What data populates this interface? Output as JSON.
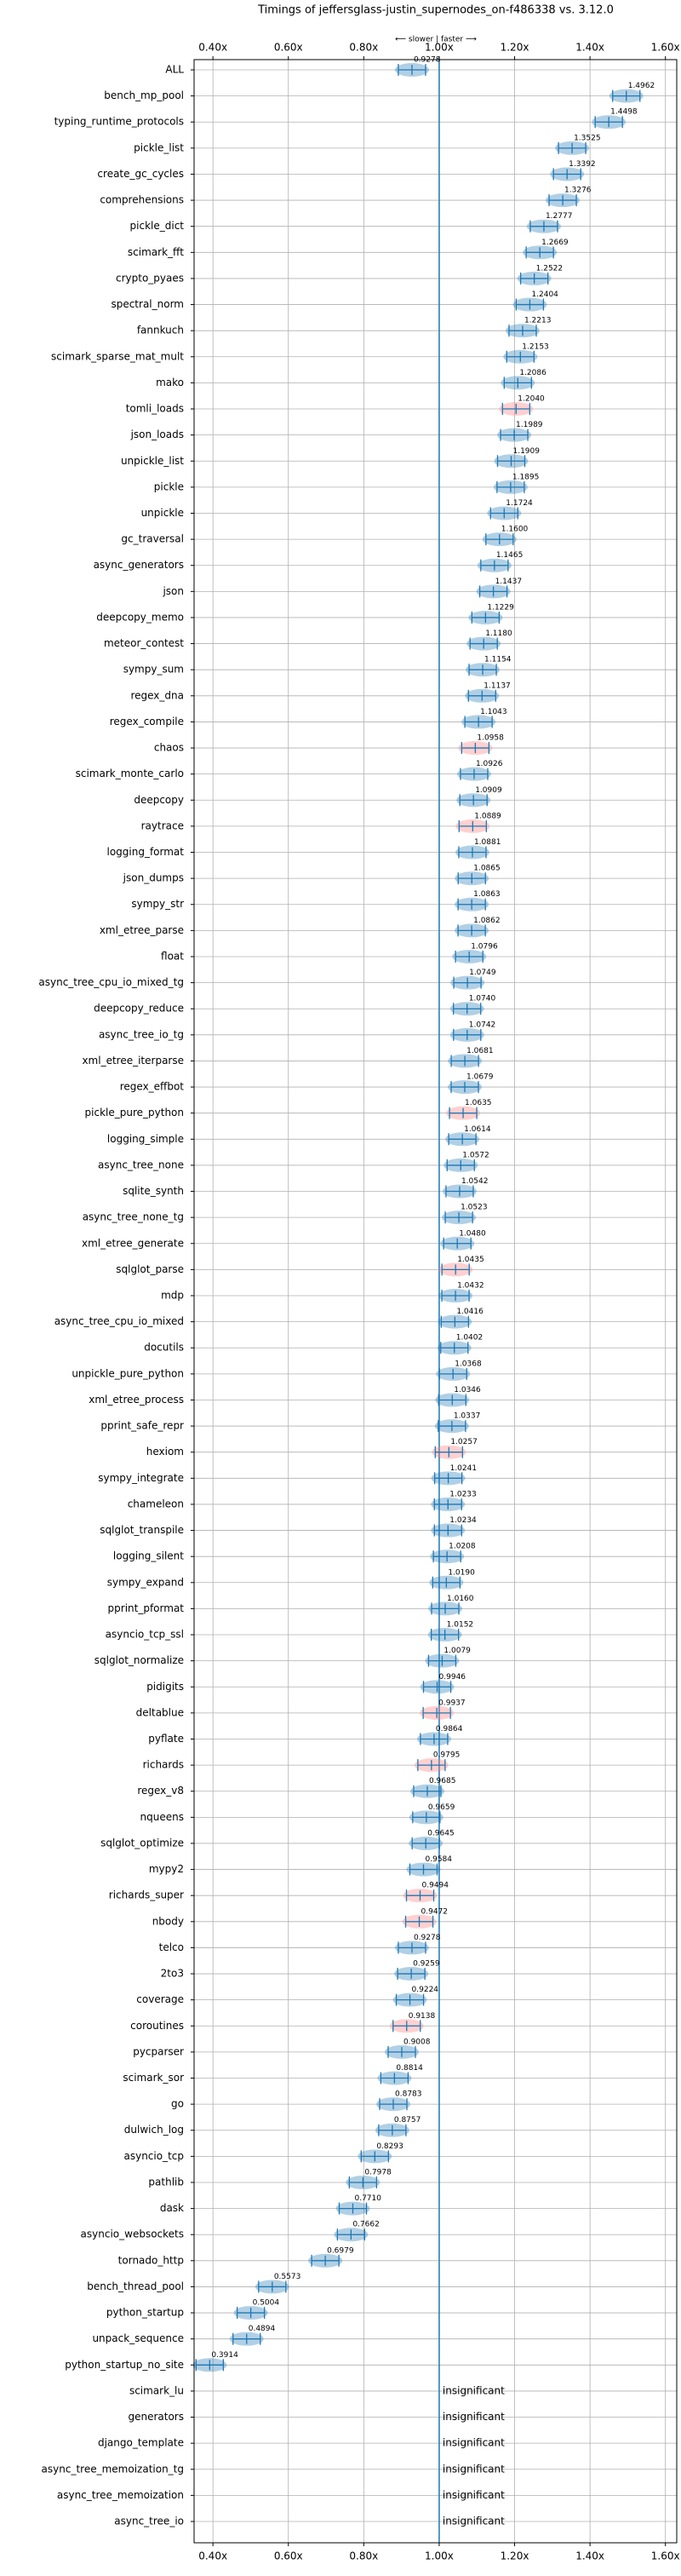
{
  "chart_data": {
    "type": "violin",
    "title": "Timings of jeffersglass-justin_supernodes_on-f486338 vs. 3.12.0",
    "direction_label": "⟵ slower | faster ⟶",
    "xlim": [
      0.35,
      1.63
    ],
    "xticks": [
      {
        "value": 0.4,
        "label": "0.40x"
      },
      {
        "value": 0.6,
        "label": "0.60x"
      },
      {
        "value": 0.8,
        "label": "0.80x"
      },
      {
        "value": 1.0,
        "label": "1.00x"
      },
      {
        "value": 1.2,
        "label": "1.20x"
      },
      {
        "value": 1.4,
        "label": "1.40x"
      },
      {
        "value": 1.6,
        "label": "1.60x"
      }
    ],
    "grid": true,
    "categories": [
      "ALL",
      "bench_mp_pool",
      "typing_runtime_protocols",
      "pickle_list",
      "create_gc_cycles",
      "comprehensions",
      "pickle_dict",
      "scimark_fft",
      "crypto_pyaes",
      "spectral_norm",
      "fannkuch",
      "scimark_sparse_mat_mult",
      "mako",
      "tomli_loads",
      "json_loads",
      "unpickle_list",
      "pickle",
      "unpickle",
      "gc_traversal",
      "async_generators",
      "json",
      "deepcopy_memo",
      "meteor_contest",
      "sympy_sum",
      "regex_dna",
      "regex_compile",
      "chaos",
      "scimark_monte_carlo",
      "deepcopy",
      "raytrace",
      "logging_format",
      "json_dumps",
      "sympy_str",
      "xml_etree_parse",
      "float",
      "async_tree_cpu_io_mixed_tg",
      "deepcopy_reduce",
      "async_tree_io_tg",
      "xml_etree_iterparse",
      "regex_effbot",
      "pickle_pure_python",
      "logging_simple",
      "async_tree_none",
      "sqlite_synth",
      "async_tree_none_tg",
      "xml_etree_generate",
      "sqlglot_parse",
      "mdp",
      "async_tree_cpu_io_mixed",
      "docutils",
      "unpickle_pure_python",
      "xml_etree_process",
      "pprint_safe_repr",
      "hexiom",
      "sympy_integrate",
      "chameleon",
      "sqlglot_transpile",
      "logging_silent",
      "sympy_expand",
      "pprint_pformat",
      "asyncio_tcp_ssl",
      "sqlglot_normalize",
      "pidigits",
      "deltablue",
      "pyflate",
      "richards",
      "regex_v8",
      "nqueens",
      "sqlglot_optimize",
      "mypy2",
      "richards_super",
      "nbody",
      "telco",
      "2to3",
      "coverage",
      "coroutines",
      "pycparser",
      "scimark_sor",
      "go",
      "dulwich_log",
      "asyncio_tcp",
      "pathlib",
      "dask",
      "asyncio_websockets",
      "tornado_http",
      "bench_thread_pool",
      "python_startup",
      "unpack_sequence",
      "python_startup_no_site",
      "scimark_lu",
      "generators",
      "django_template",
      "async_tree_memoization_tg",
      "async_tree_memoization",
      "async_tree_io"
    ],
    "values": [
      0.9278,
      1.4962,
      1.4498,
      1.3525,
      1.3392,
      1.3276,
      1.2777,
      1.2669,
      1.2522,
      1.2404,
      1.2213,
      1.2153,
      1.2086,
      1.204,
      1.1989,
      1.1909,
      1.1895,
      1.1724,
      1.16,
      1.1465,
      1.1437,
      1.1229,
      1.118,
      1.1154,
      1.1137,
      1.1043,
      1.0958,
      1.0926,
      1.0909,
      1.0889,
      1.0881,
      1.0865,
      1.0863,
      1.0862,
      1.0796,
      1.0749,
      1.074,
      1.0742,
      1.0681,
      1.0679,
      1.0635,
      1.0614,
      1.0572,
      1.0542,
      1.0523,
      1.048,
      1.0435,
      1.0432,
      1.0416,
      1.0402,
      1.0368,
      1.0346,
      1.0337,
      1.0257,
      1.0241,
      1.0233,
      1.0234,
      1.0208,
      1.019,
      1.016,
      1.0152,
      1.0079,
      0.9946,
      0.9937,
      0.9864,
      0.9795,
      0.9685,
      0.9659,
      0.9645,
      0.9584,
      0.9494,
      0.9472,
      0.9278,
      0.9259,
      0.9224,
      0.9138,
      0.9008,
      0.8814,
      0.8783,
      0.8757,
      0.8293,
      0.7978,
      0.771,
      0.7662,
      0.6979,
      0.5573,
      0.5004,
      0.4894,
      0.3914,
      null,
      null,
      null,
      null,
      null,
      null
    ],
    "value_labels": [
      "0.9278",
      "1.4962",
      "1.4498",
      "1.3525",
      "1.3392",
      "1.3276",
      "1.2777",
      "1.2669",
      "1.2522",
      "1.2404",
      "1.2213",
      "1.2153",
      "1.2086",
      "1.2040",
      "1.1989",
      "1.1909",
      "1.1895",
      "1.1724",
      "1.1600",
      "1.1465",
      "1.1437",
      "1.1229",
      "1.1180",
      "1.1154",
      "1.1137",
      "1.1043",
      "1.0958",
      "1.0926",
      "1.0909",
      "1.0889",
      "1.0881",
      "1.0865",
      "1.0863",
      "1.0862",
      "1.0796",
      "1.0749",
      "1.0740",
      "1.0742",
      "1.0681",
      "1.0679",
      "1.0635",
      "1.0614",
      "1.0572",
      "1.0542",
      "1.0523",
      "1.0480",
      "1.0435",
      "1.0432",
      "1.0416",
      "1.0402",
      "1.0368",
      "1.0346",
      "1.0337",
      "1.0257",
      "1.0241",
      "1.0233",
      "1.0234",
      "1.0208",
      "1.0190",
      "1.0160",
      "1.0152",
      "1.0079",
      "0.9946",
      "0.9937",
      "0.9864",
      "0.9795",
      "0.9685",
      "0.9659",
      "0.9645",
      "0.9584",
      "0.9494",
      "0.9472",
      "0.9278",
      "0.9259",
      "0.9224",
      "0.9138",
      "0.9008",
      "0.8814",
      "0.8783",
      "0.8757",
      "0.8293",
      "0.7978",
      "0.7710",
      "0.7662",
      "0.6979",
      "0.5573",
      "0.5004",
      "0.4894",
      "0.3914",
      "insignificant",
      "insignificant",
      "insignificant",
      "insignificant",
      "insignificant",
      "insignificant"
    ],
    "colors": [
      "#1f77b4",
      "#1f77b4",
      "#1f77b4",
      "#1f77b4",
      "#1f77b4",
      "#1f77b4",
      "#1f77b4",
      "#1f77b4",
      "#1f77b4",
      "#1f77b4",
      "#1f77b4",
      "#1f77b4",
      "#1f77b4",
      "#ff7777",
      "#1f77b4",
      "#1f77b4",
      "#1f77b4",
      "#1f77b4",
      "#1f77b4",
      "#1f77b4",
      "#1f77b4",
      "#1f77b4",
      "#1f77b4",
      "#1f77b4",
      "#1f77b4",
      "#1f77b4",
      "#ff7777",
      "#1f77b4",
      "#1f77b4",
      "#ff7777",
      "#1f77b4",
      "#1f77b4",
      "#1f77b4",
      "#1f77b4",
      "#1f77b4",
      "#1f77b4",
      "#1f77b4",
      "#1f77b4",
      "#1f77b4",
      "#1f77b4",
      "#ff7777",
      "#1f77b4",
      "#1f77b4",
      "#1f77b4",
      "#1f77b4",
      "#1f77b4",
      "#ff7777",
      "#1f77b4",
      "#1f77b4",
      "#1f77b4",
      "#1f77b4",
      "#1f77b4",
      "#1f77b4",
      "#ff7777",
      "#1f77b4",
      "#1f77b4",
      "#1f77b4",
      "#1f77b4",
      "#1f77b4",
      "#1f77b4",
      "#1f77b4",
      "#1f77b4",
      "#1f77b4",
      "#ff7777",
      "#1f77b4",
      "#ff7777",
      "#1f77b4",
      "#1f77b4",
      "#1f77b4",
      "#1f77b4",
      "#ff7777",
      "#ff7777",
      "#1f77b4",
      "#1f77b4",
      "#1f77b4",
      "#ff7777",
      "#1f77b4",
      "#1f77b4",
      "#1f77b4",
      "#1f77b4",
      "#1f77b4",
      "#1f77b4",
      "#1f77b4",
      "#1f77b4",
      "#1f77b4",
      "#1f77b4",
      "#1f77b4",
      "#1f77b4",
      "#1f77b4",
      null,
      null,
      null,
      null,
      null,
      null
    ],
    "line_color": "#1f77b4"
  }
}
